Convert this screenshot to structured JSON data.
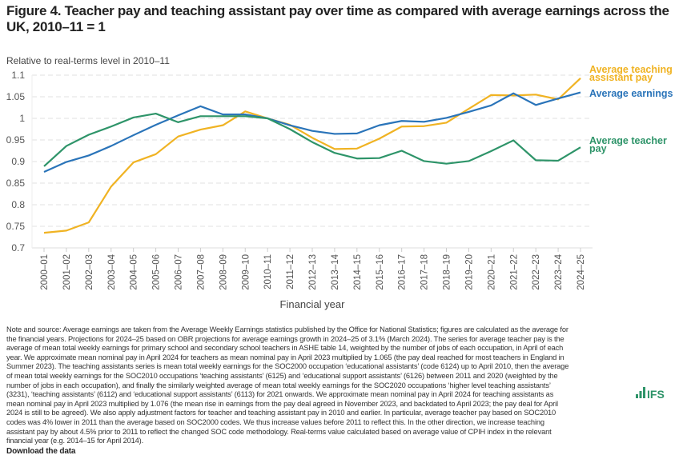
{
  "title": "Figure 4. Teacher pay and teaching assistant pay over time as compared with average earnings across the UK, 2010–11 = 1",
  "chart_data": {
    "type": "line",
    "subtitle": "Relative to real-terms level in 2010–11",
    "xlabel": "Financial year",
    "ylabel": "",
    "ylim": [
      0.7,
      1.1
    ],
    "yticks": [
      "0.7",
      "0.75",
      "0.8",
      "0.85",
      "0.9",
      "0.95",
      "1",
      "1.05",
      "1.1"
    ],
    "grid": "horizontal dashed",
    "legend": "direct labels at right end of lines",
    "categories": [
      "2000–01",
      "2001–02",
      "2002–03",
      "2003–04",
      "2004–05",
      "2005–06",
      "2006–07",
      "2007–08",
      "2008–09",
      "2009–10",
      "2010–11",
      "2011–12",
      "2012–13",
      "2013–14",
      "2014–15",
      "2015–16",
      "2016–17",
      "2017–18",
      "2018–19",
      "2019–20",
      "2020–21",
      "2021–22",
      "2022–23",
      "2023–24",
      "2024–25"
    ],
    "series": [
      {
        "name": "Average teaching assistant pay",
        "color": "#f0b323",
        "values": [
          0.735,
          0.74,
          0.759,
          0.842,
          0.898,
          0.917,
          0.958,
          0.974,
          0.984,
          1.016,
          1.0,
          0.985,
          0.955,
          0.929,
          0.93,
          0.953,
          0.981,
          0.982,
          0.99,
          1.022,
          1.054,
          1.053,
          1.055,
          1.044,
          1.093
        ]
      },
      {
        "name": "Average earnings",
        "color": "#2a74b9",
        "values": [
          0.876,
          0.899,
          0.914,
          0.936,
          0.961,
          0.985,
          1.007,
          1.028,
          1.009,
          1.009,
          1.0,
          0.984,
          0.971,
          0.964,
          0.965,
          0.984,
          0.994,
          0.992,
          1.001,
          1.015,
          1.03,
          1.058,
          1.031,
          1.046,
          1.06
        ]
      },
      {
        "name": "Average teacher pay",
        "color": "#2e9469",
        "values": [
          0.889,
          0.936,
          0.962,
          0.981,
          1.002,
          1.011,
          0.991,
          1.005,
          1.005,
          1.005,
          1.0,
          0.975,
          0.945,
          0.92,
          0.907,
          0.908,
          0.925,
          0.901,
          0.895,
          0.901,
          0.924,
          0.949,
          0.903,
          0.902,
          0.933
        ]
      }
    ]
  },
  "notes": [
    "Note and source: Average earnings are taken from the Average Weekly Earnings statistics published by the Office for National Statistics; figures are calculated as the average for",
    "the financial years. Projections for 2024–25 based on OBR projections for average earnings growth in 2024–25 of 3.1% (March 2024). The series for average teacher pay is the",
    "average of mean total weekly earnings for primary school and secondary school teachers in ASHE table 14, weighted by the number of jobs of each occupation, in April of each",
    "year. We approximate mean nominal pay in April 2024 for teachers as mean nominal pay in April 2023 multiplied by 1.065 (the pay deal reached for most teachers in England in",
    "Summer 2023). The teaching assistants series is mean total weekly earnings for the SOC2000 occupation ‘educational assistants’ (code 6124) up to April 2010, then the average",
    "of mean total weekly earnings for the SOC2010 occupations ‘teaching assistants’ (6125) and ‘educational support assistants’ (6126) between 2011 and 2020 (weighted by the",
    "number of jobs in each occupation), and finally the similarly weighted average of mean total weekly earnings for the SOC2020 occupations ‘higher level teaching assistants’",
    "(3231), ‘teaching assistants’ (6112) and ‘educational support assistants’ (6113) for 2021 onwards. We approximate mean nominal pay in April 2024 for teaching assistants as",
    "mean nominal pay in April 2023 multiplied by 1.076 (the mean rise in earnings from the pay deal agreed in November 2023, and backdated to April 2023; the pay deal for April",
    "2024 is still to be agreed). We also apply adjustment factors for teacher and teaching assistant pay in 2010 and earlier. In particular, average teacher pay based on SOC2010",
    "codes was 4% lower in 2011 than the average based on SOC2000 codes. We thus increase values before 2011 to reflect this. In the other direction, we increase teaching",
    "assistant pay by about 4.5% prior to 2011 to reflect the changed SOC code methodology. Real-terms value calculated based on average value of CPIH index in the relevant",
    "financial year (e.g. 2014–15 for April 2014)."
  ],
  "download_label": "Download the data",
  "logo": {
    "text": "IFS",
    "color": "#2e9469"
  }
}
